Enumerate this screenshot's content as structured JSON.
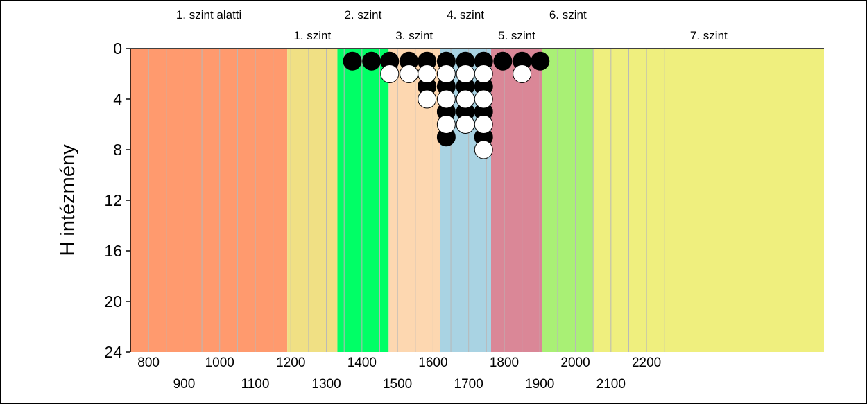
{
  "chart_data": {
    "type": "scatter",
    "ylabel": "H intézmény",
    "xlim": [
      1268,
      1918
    ],
    "ylim": [
      0,
      24
    ],
    "y_inverted": true,
    "y_ticks": [
      "0",
      "4",
      "8",
      "12",
      "16",
      "20",
      "24"
    ],
    "x_ticks_top": [
      "800",
      "1000",
      "1200",
      "1400",
      "1600",
      "1800",
      "2000",
      "2200"
    ],
    "x_ticks_bottom": [
      "900",
      "1100",
      "1300",
      "1500",
      "1700",
      "1900",
      "2100"
    ],
    "levels": [
      {
        "label": "1. szint alatti",
        "from": 1268,
        "to": 1415,
        "color": "#FF9A6E",
        "label_row": "upper"
      },
      {
        "label": "1. szint",
        "from": 1415,
        "to": 1462,
        "color": "#F0E084",
        "label_row": "lower"
      },
      {
        "label": "2. szint",
        "from": 1462,
        "to": 1510,
        "color": "#00FF66",
        "label_row": "upper"
      },
      {
        "label": "3. szint",
        "from": 1510,
        "to": 1558,
        "color": "#FDD7B0",
        "label_row": "lower"
      },
      {
        "label": "4. szint",
        "from": 1558,
        "to": 1606,
        "color": "#A9D3E3",
        "label_row": "upper"
      },
      {
        "label": "5. szint",
        "from": 1606,
        "to": 1654,
        "color": "#DA8797",
        "label_row": "lower"
      },
      {
        "label": "6. szint",
        "from": 1654,
        "to": 1702,
        "color": "#A9F075",
        "label_row": "upper"
      },
      {
        "label": "7. szint",
        "from": 1702,
        "to": 1918,
        "color": "#EFEF7E",
        "label_row": "lower"
      }
    ],
    "series": [
      {
        "color": "black",
        "points": [
          [
            1476,
            1
          ],
          [
            1494,
            1
          ],
          [
            1511,
            1
          ],
          [
            1529,
            1
          ],
          [
            1546,
            1
          ],
          [
            1564,
            1
          ],
          [
            1582,
            1
          ],
          [
            1599,
            1
          ],
          [
            1617,
            1
          ],
          [
            1635,
            1
          ],
          [
            1652,
            1
          ],
          [
            1546,
            3
          ],
          [
            1564,
            3
          ],
          [
            1582,
            3
          ],
          [
            1599,
            3
          ],
          [
            1564,
            5
          ],
          [
            1582,
            5
          ],
          [
            1599,
            5
          ],
          [
            1564,
            7
          ],
          [
            1599,
            7
          ]
        ]
      },
      {
        "color": "white",
        "points": [
          [
            1511,
            2
          ],
          [
            1529,
            2
          ],
          [
            1546,
            2
          ],
          [
            1564,
            2
          ],
          [
            1582,
            2
          ],
          [
            1599,
            2
          ],
          [
            1635,
            2
          ],
          [
            1546,
            4
          ],
          [
            1564,
            4
          ],
          [
            1582,
            4
          ],
          [
            1599,
            4
          ],
          [
            1564,
            6
          ],
          [
            1582,
            6
          ],
          [
            1599,
            6
          ],
          [
            1599,
            8
          ]
        ]
      }
    ]
  }
}
